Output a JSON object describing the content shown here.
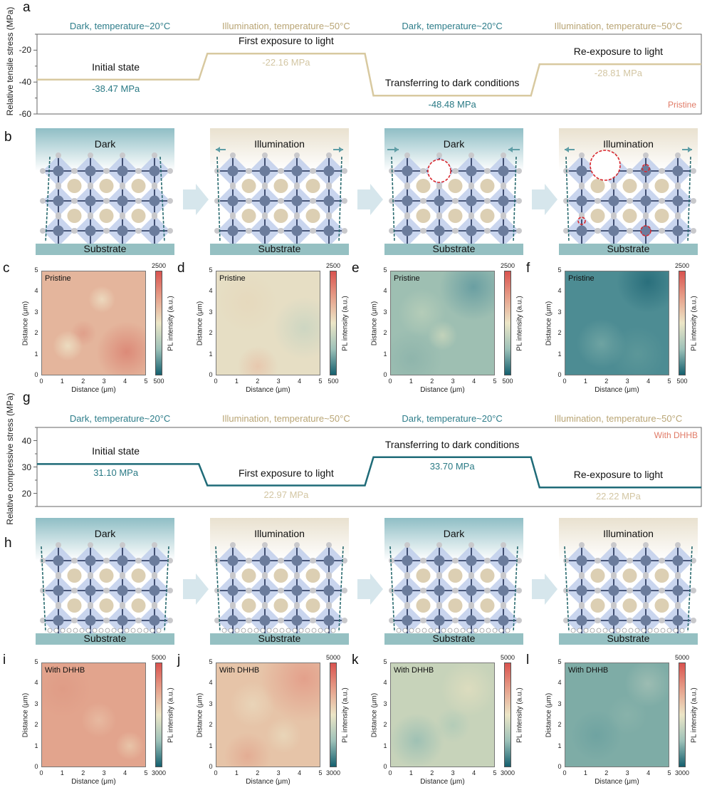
{
  "colors": {
    "dark_header": "#2e7d8a",
    "illum_header": "#b9a575",
    "teal_value": "#2a7a85",
    "beige_value": "#d3c6a3",
    "condition_red": "#e07a66",
    "line_a": "#d8c9a0",
    "line_g": "#1f6b78"
  },
  "chart_data": [
    {
      "id": "a",
      "type": "line",
      "letter": "a",
      "ylabel": "Relative tensile stress (MPa)",
      "ylim": [
        -60,
        -10
      ],
      "yticks": [
        -60,
        -40,
        -20
      ],
      "headers": [
        "Dark, temperature~20°C",
        "Illumination, temperature~50°C",
        "Dark, temperature~20°C",
        "Illumination, temperature~50°C"
      ],
      "condition": "Pristine",
      "line_color": "#d8c9a0",
      "stages": [
        {
          "label": "Initial state",
          "value": -38.47,
          "value_text": "-38.47 MPa",
          "value_color": "#2a7a85"
        },
        {
          "label": "First exposure to light",
          "value": -22.16,
          "value_text": "-22.16 MPa",
          "value_color": "#d3c6a3"
        },
        {
          "label": "Transferring to dark conditions",
          "value": -48.48,
          "value_text": "-48.48 MPa",
          "value_color": "#2a7a85"
        },
        {
          "label": "Re-exposure to light",
          "value": -28.81,
          "value_text": "-28.81 MPa",
          "value_color": "#d3c6a3"
        }
      ]
    },
    {
      "id": "g",
      "type": "line",
      "letter": "g",
      "ylabel": "Relative compressive stress (MPa)",
      "ylim": [
        15,
        45
      ],
      "yticks": [
        20,
        30,
        40
      ],
      "headers": [
        "Dark, temperature~20°C",
        "Illumination, temperature~50°C",
        "Dark, temperature~20°C",
        "Illumination, temperature~50°C"
      ],
      "condition": "With DHHB",
      "line_color": "#1f6b78",
      "stages": [
        {
          "label": "Initial state",
          "value": 31.1,
          "value_text": "31.10 MPa",
          "value_color": "#2a7a85"
        },
        {
          "label": "First exposure to light",
          "value": 22.97,
          "value_text": "22.97 MPa",
          "value_color": "#d3c6a3"
        },
        {
          "label": "Transferring to dark conditions",
          "value": 33.7,
          "value_text": "33.70 MPa",
          "value_color": "#2a7a85"
        },
        {
          "label": "Re-exposure to light",
          "value": 22.22,
          "value_text": "22.22 MPa",
          "value_color": "#d3c6a3"
        }
      ]
    },
    {
      "id": "c",
      "type": "heatmap",
      "letter": "c",
      "tag": "Pristine",
      "xlabel": "Distance (μm)",
      "ylabel": "Distance (μm)",
      "xlim": [
        0,
        5
      ],
      "ylim": [
        0,
        5
      ],
      "ticks": [
        0,
        1,
        2,
        3,
        4,
        5
      ],
      "colorbar_label": "PL intensity (a.u.)",
      "colorbar_ticks": [
        500,
        2500
      ],
      "dominant_color": "#e4b59c"
    },
    {
      "id": "d",
      "type": "heatmap",
      "letter": "d",
      "tag": "Pristine",
      "xlabel": "Distance (μm)",
      "ylabel": "Distance (μm)",
      "xlim": [
        0,
        5
      ],
      "ylim": [
        0,
        5
      ],
      "ticks": [
        0,
        1,
        2,
        3,
        4,
        5
      ],
      "colorbar_label": "PL intensity (a.u.)",
      "colorbar_ticks": [
        500,
        2500
      ],
      "dominant_color": "#e6dec4"
    },
    {
      "id": "e",
      "type": "heatmap",
      "letter": "e",
      "tag": "Pristine",
      "xlabel": "Distance (μm)",
      "ylabel": "Distance (μm)",
      "xlim": [
        0,
        5
      ],
      "ylim": [
        0,
        5
      ],
      "ticks": [
        0,
        1,
        2,
        3,
        4,
        5
      ],
      "colorbar_label": "PL intensity (a.u.)",
      "colorbar_ticks": [
        500,
        2500
      ],
      "dominant_color": "#9ebfb2"
    },
    {
      "id": "f",
      "type": "heatmap",
      "letter": "f",
      "tag": "Pristine",
      "xlabel": "Distance (μm)",
      "ylabel": "Distance (μm)",
      "xlim": [
        0,
        5
      ],
      "ylim": [
        0,
        5
      ],
      "ticks": [
        0,
        1,
        2,
        3,
        4,
        5
      ],
      "colorbar_label": "PL intensity (a.u.)",
      "colorbar_ticks": [
        500,
        2500
      ],
      "dominant_color": "#4d8c93"
    },
    {
      "id": "i",
      "type": "heatmap",
      "letter": "i",
      "tag": "With DHHB",
      "xlabel": "Distance (μm)",
      "ylabel": "Distance (μm)",
      "xlim": [
        0,
        5
      ],
      "ylim": [
        0,
        5
      ],
      "ticks": [
        0,
        1,
        2,
        3,
        4,
        5
      ],
      "colorbar_label": "PL intensity (a.u.)",
      "colorbar_ticks": [
        3000,
        5000
      ],
      "dominant_color": "#e2a48d"
    },
    {
      "id": "j",
      "type": "heatmap",
      "letter": "j",
      "tag": "With DHHB",
      "xlabel": "Distance (μm)",
      "ylabel": "Distance (μm)",
      "xlim": [
        0,
        5
      ],
      "ylim": [
        0,
        5
      ],
      "ticks": [
        0,
        1,
        2,
        3,
        4,
        5
      ],
      "colorbar_label": "PL intensity (a.u.)",
      "colorbar_ticks": [
        3000,
        5000
      ],
      "dominant_color": "#e6c4a8"
    },
    {
      "id": "k",
      "type": "heatmap",
      "letter": "k",
      "tag": "With DHHB",
      "xlabel": "Distance (μm)",
      "ylabel": "Distance (μm)",
      "xlim": [
        0,
        5
      ],
      "ylim": [
        0,
        5
      ],
      "ticks": [
        0,
        1,
        2,
        3,
        4,
        5
      ],
      "colorbar_label": "PL intensity (a.u.)",
      "colorbar_ticks": [
        3000,
        5000
      ],
      "dominant_color": "#c7d3ba"
    },
    {
      "id": "l",
      "type": "heatmap",
      "letter": "l",
      "tag": "With DHHB",
      "xlabel": "Distance (μm)",
      "ylabel": "Distance (μm)",
      "xlim": [
        0,
        5
      ],
      "ylim": [
        0,
        5
      ],
      "ticks": [
        0,
        1,
        2,
        3,
        4,
        5
      ],
      "colorbar_label": "PL intensity (a.u.)",
      "colorbar_ticks": [
        3000,
        5000
      ],
      "dominant_color": "#7eaca6"
    }
  ],
  "diagrams": [
    {
      "letter": "b",
      "panels": [
        {
          "title": "Dark",
          "substrate": "Substrate",
          "mode": "dark"
        },
        {
          "title": "Illumination",
          "substrate": "Substrate",
          "mode": "illum"
        },
        {
          "title": "Dark",
          "substrate": "Substrate",
          "mode": "dark"
        },
        {
          "title": "Illumination",
          "substrate": "Substrate",
          "mode": "illum"
        }
      ]
    },
    {
      "letter": "h",
      "panels": [
        {
          "title": "Dark",
          "substrate": "Substrate",
          "mode": "dark"
        },
        {
          "title": "Illumination",
          "substrate": "Substrate",
          "mode": "illum"
        },
        {
          "title": "Dark",
          "substrate": "Substrate",
          "mode": "dark"
        },
        {
          "title": "Illumination",
          "substrate": "Substrate",
          "mode": "illum"
        }
      ]
    }
  ]
}
